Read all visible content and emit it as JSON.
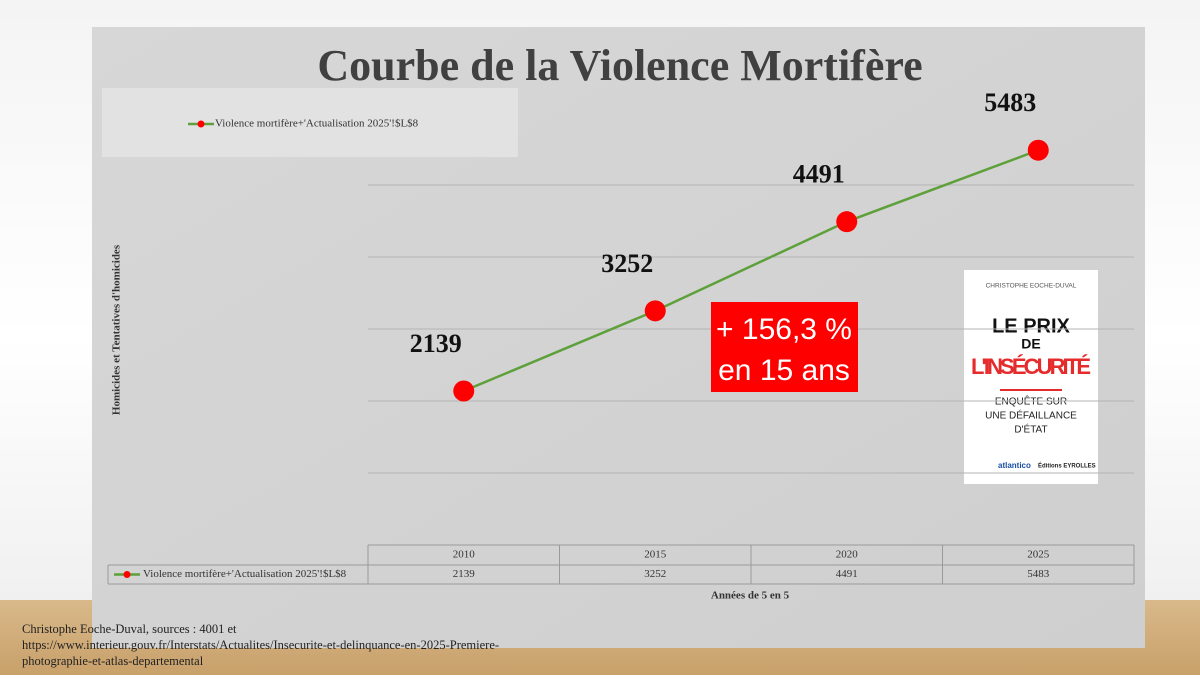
{
  "chart_data": {
    "type": "line",
    "title": "Courbe de la Violence Mortifère",
    "y_label": "Homicides et Tentatives d'homicides",
    "x_label": "Années de 5 en 5",
    "categories": [
      "2010",
      "2015",
      "2020",
      "2025"
    ],
    "series": [
      {
        "name": "Violence mortifère+'Actualisation 2025'!$L$8",
        "color": "#5ea03a",
        "marker_color": "#ff0000",
        "values": [
          2139,
          3252,
          4491,
          5483
        ]
      }
    ],
    "ylim": [
      0,
      6000
    ],
    "yticks": [
      0,
      1000,
      2000,
      3000,
      4000,
      5000
    ],
    "grid": true,
    "ytick_labels": false,
    "legend": "top-left",
    "data_table": true,
    "annotation": [
      "+ 156,3 %",
      "en 15 ans"
    ],
    "annotation_color": "#ff0000"
  },
  "book": {
    "author": "CHRISTOPHE EOCHE-DUVAL",
    "title": [
      "LE PRIX",
      "DE",
      "L'INSÉCURITÉ"
    ],
    "subtitle": [
      "ENQUÊTE SUR",
      "UNE DÉFAILLANCE",
      "D'ÉTAT"
    ],
    "publishers": [
      "atlantico",
      "Éditions EYROLLES"
    ]
  },
  "source": [
    "Christophe Eoche-Duval, sources : 4001 et",
    "https://www.interieur.gouv.fr/Interstats/Actualites/Insecurite-et-delinquance-en-2025-Premiere-",
    "photographie-et-atlas-departemental"
  ]
}
